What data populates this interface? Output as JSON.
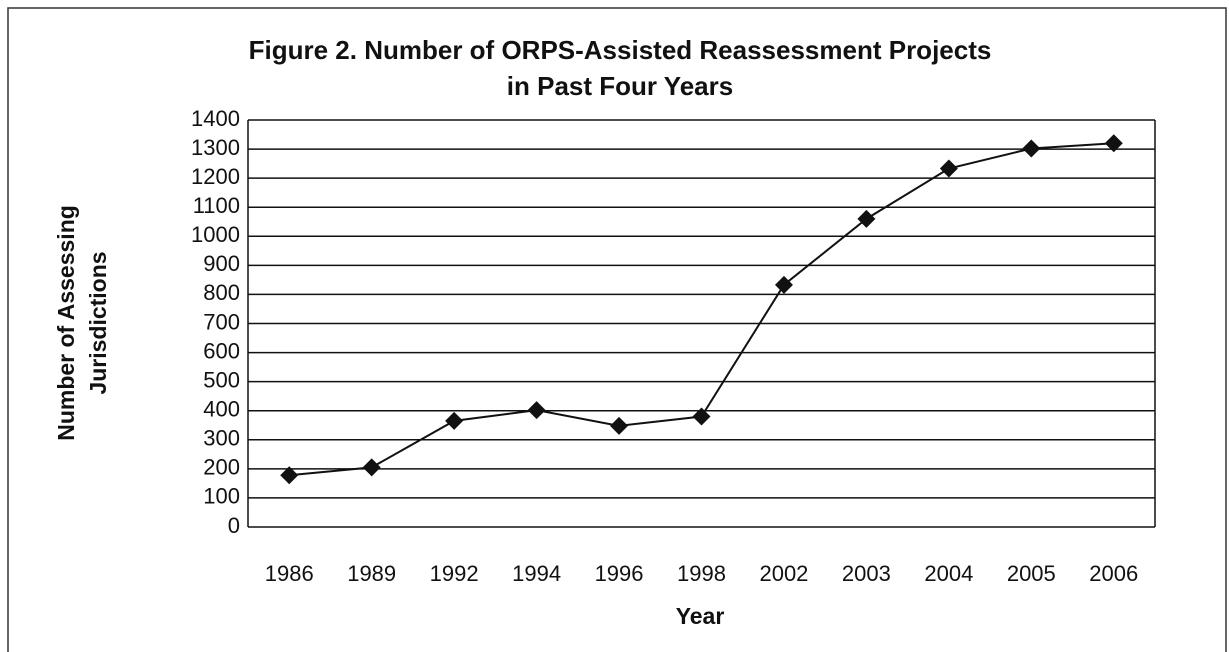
{
  "chart_data": {
    "type": "line",
    "title": [
      "Figure 2.   Number of ORPS-Assisted Reassessment Projects",
      "in Past Four Years"
    ],
    "xlabel": "Year",
    "ylabel": [
      "Number of Assessing",
      "Jurisdictions"
    ],
    "categories": [
      "1986",
      "1989",
      "1992",
      "1994",
      "1996",
      "1998",
      "2002",
      "2003",
      "2004",
      "2005",
      "2006"
    ],
    "series": [
      {
        "color": "#111111",
        "values": [
          178,
          205,
          365,
          402,
          348,
          380,
          833,
          1060,
          1233,
          1302,
          1320
        ]
      }
    ],
    "ylim": [
      0,
      1400
    ],
    "yticks": [
      0,
      100,
      200,
      300,
      400,
      500,
      600,
      700,
      800,
      900,
      1000,
      1100,
      1200,
      1300,
      1400
    ],
    "grid": true
  }
}
